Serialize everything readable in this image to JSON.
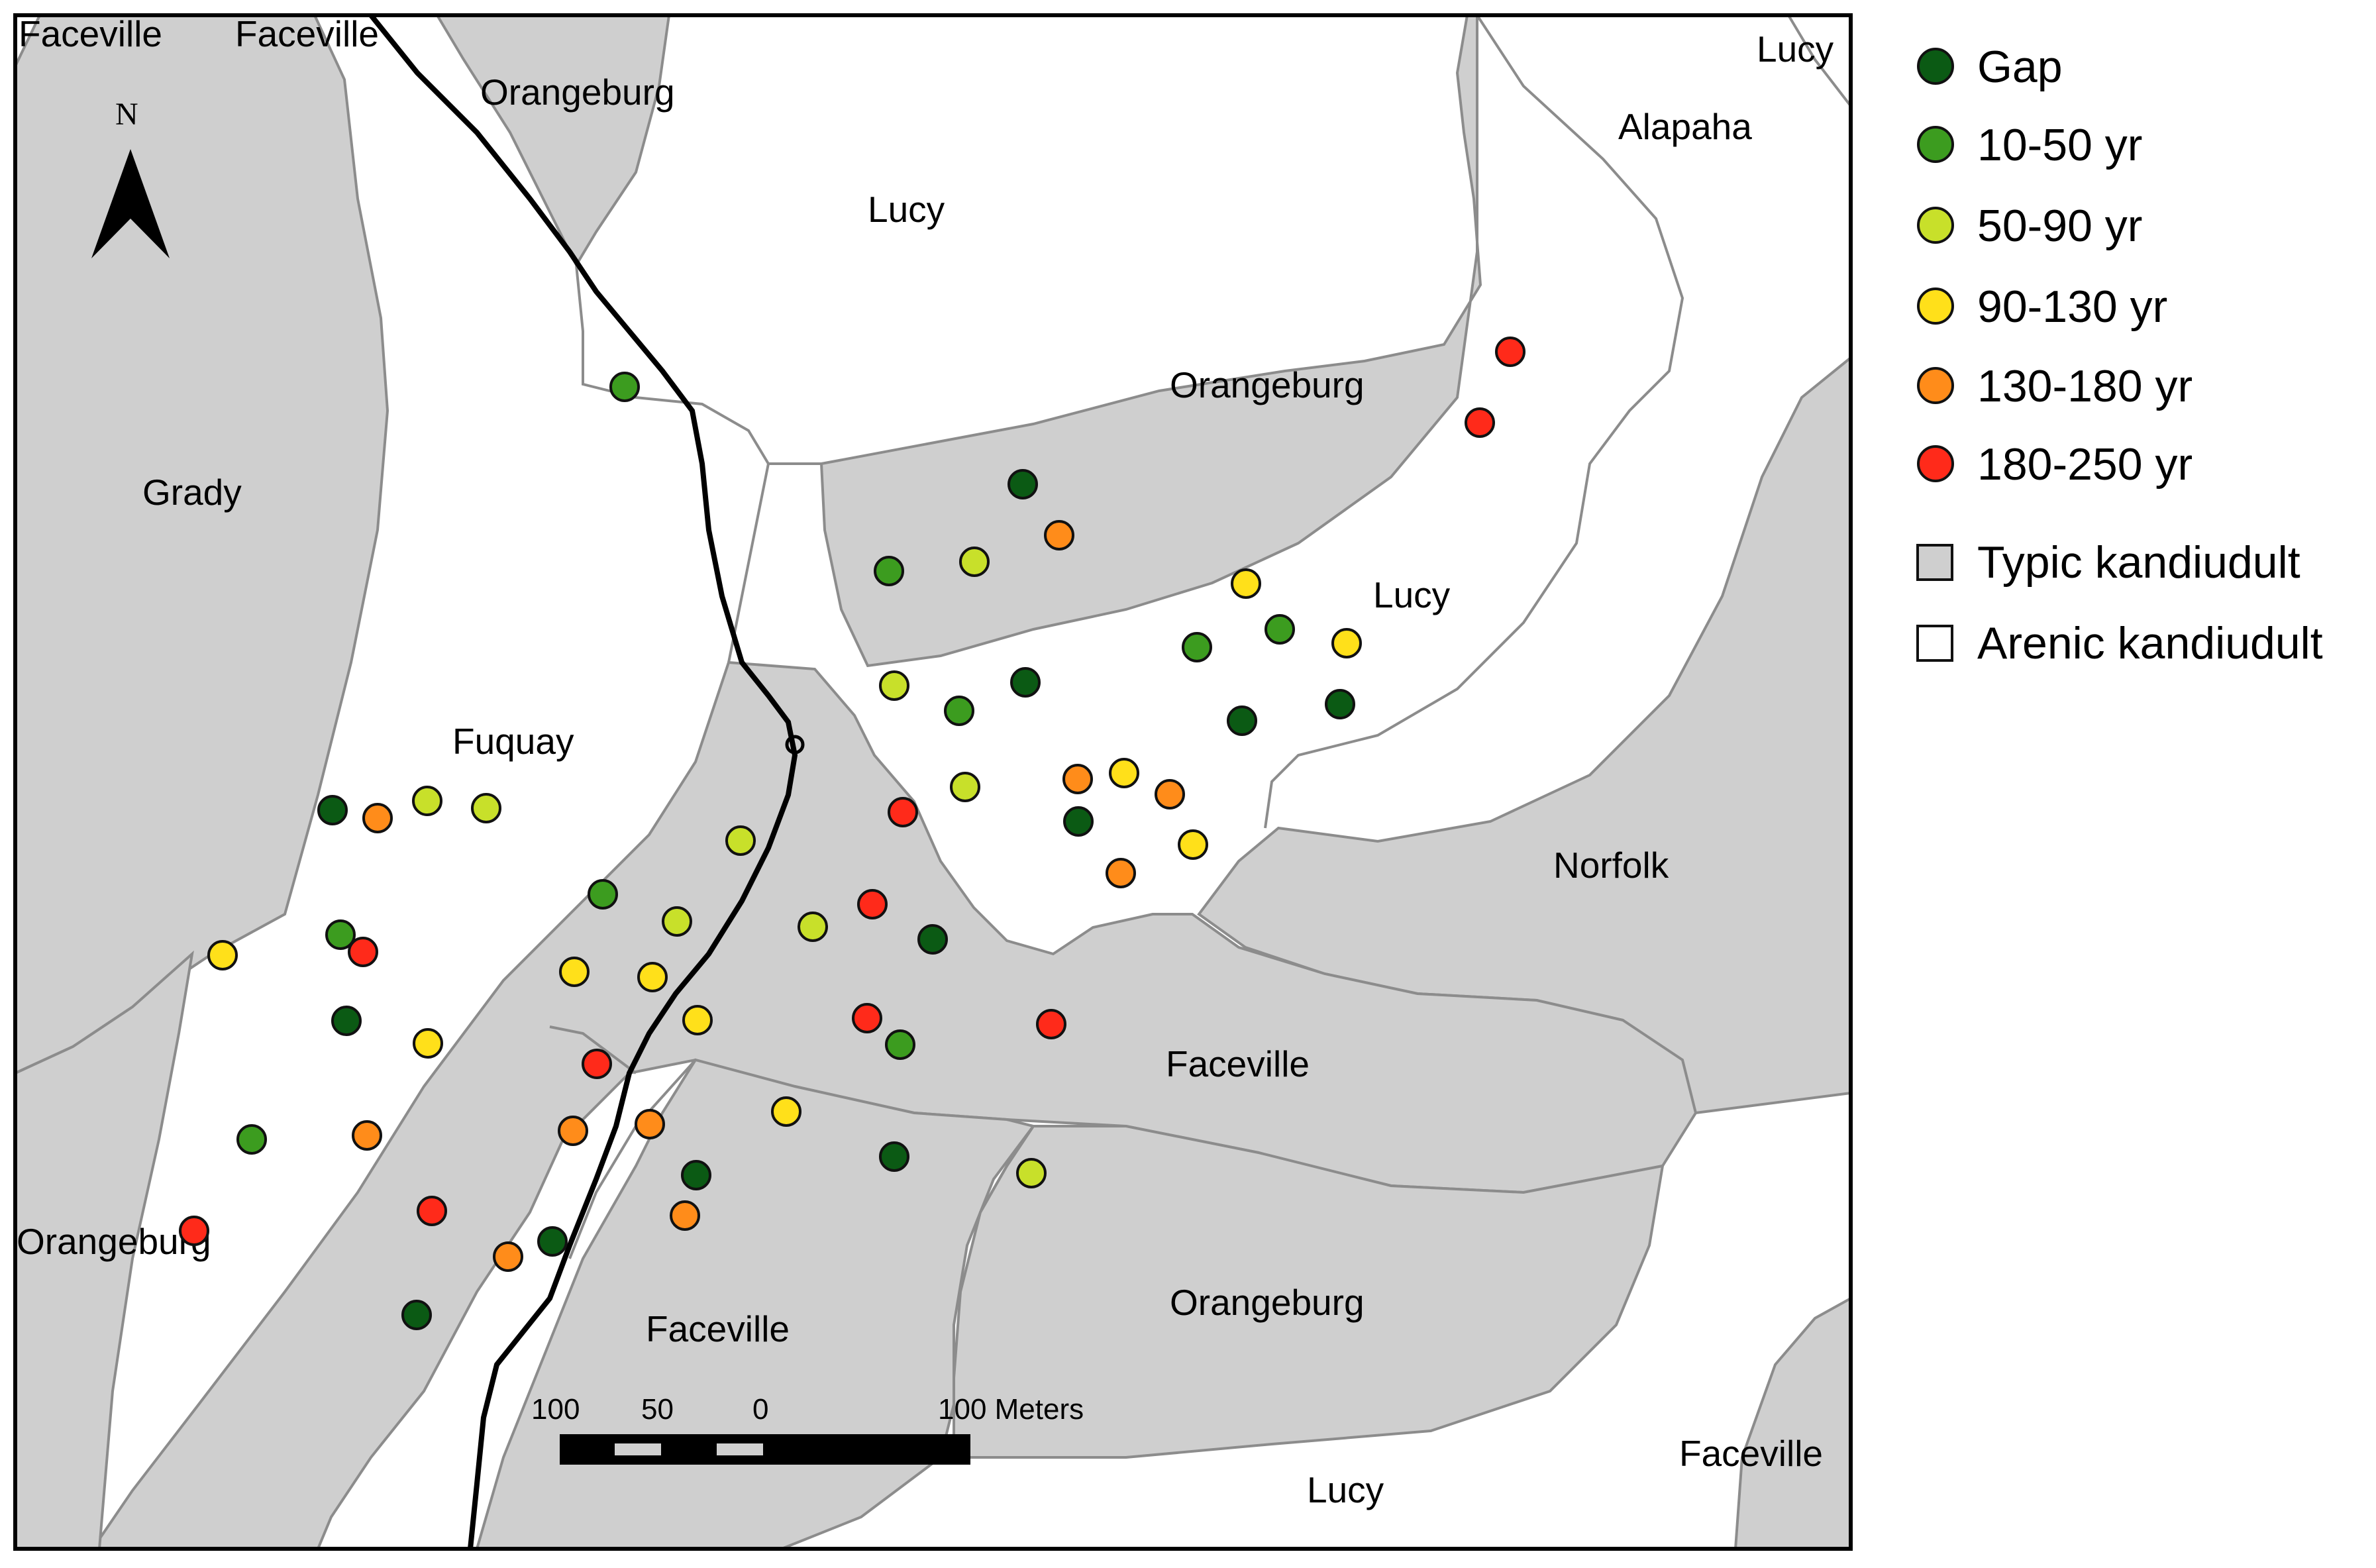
{
  "map": {
    "north_label": "N",
    "soil_labels": [
      {
        "id": "faceville-tl1",
        "text": "Faceville"
      },
      {
        "id": "faceville-tl2",
        "text": "Faceville"
      },
      {
        "id": "orangeburg-top",
        "text": "Orangeburg"
      },
      {
        "id": "lucy-top",
        "text": "Lucy"
      },
      {
        "id": "lucy-tr",
        "text": "Lucy"
      },
      {
        "id": "alapaha",
        "text": "Alapaha"
      },
      {
        "id": "orangeburg-mid",
        "text": "Orangeburg"
      },
      {
        "id": "grady",
        "text": "Grady"
      },
      {
        "id": "lucy-mid",
        "text": "Lucy"
      },
      {
        "id": "fuquay",
        "text": "Fuquay"
      },
      {
        "id": "norfolk",
        "text": "Norfolk"
      },
      {
        "id": "faceville-mid",
        "text": "Faceville"
      },
      {
        "id": "orangeburg-left",
        "text": "Orangeburg"
      },
      {
        "id": "faceville-bottom",
        "text": "Faceville"
      },
      {
        "id": "orangeburg-bottom",
        "text": "Orangeburg"
      },
      {
        "id": "faceville-br",
        "text": "Faceville"
      },
      {
        "id": "lucy-bottom",
        "text": "Lucy"
      }
    ],
    "scale_bar": {
      "labels": [
        "100",
        "50",
        "0",
        "100 Meters"
      ]
    },
    "colors": {
      "typic": "#cfcfcf",
      "arenic": "#ffffff",
      "boundary": "#8c8c8c",
      "road": "#000000"
    }
  },
  "legend": {
    "items": [
      {
        "key": "gap",
        "label": "Gap",
        "color": "#0b5a14"
      },
      {
        "key": "y10",
        "label": "10-50 yr",
        "color": "#3c9c1f"
      },
      {
        "key": "y50",
        "label": "50-90 yr",
        "color": "#c8e02a"
      },
      {
        "key": "y90",
        "label": "90-130 yr",
        "color": "#ffe01a"
      },
      {
        "key": "y130",
        "label": "130-180 yr",
        "color": "#ff8c1a"
      },
      {
        "key": "y180",
        "label": "180-250 yr",
        "color": "#ff2a1a"
      }
    ],
    "soil_items": [
      {
        "key": "typic",
        "label": "Typic kandiudult",
        "color": "#cfcfcf"
      },
      {
        "key": "arenic",
        "label": "Arenic kandiudult",
        "color": "#ffffff"
      }
    ]
  }
}
